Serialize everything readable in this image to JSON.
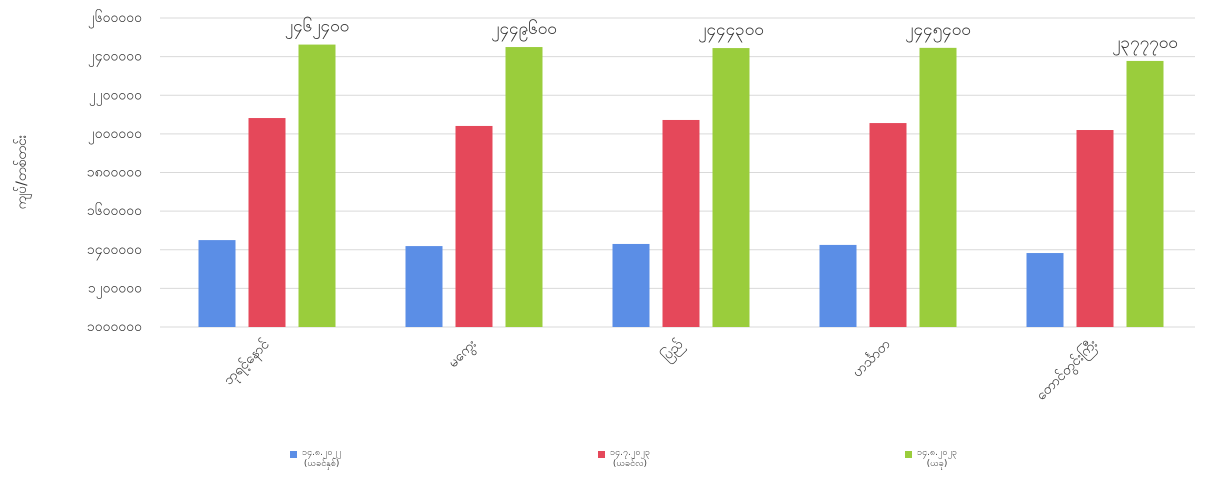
{
  "chart_data": {
    "type": "bar",
    "y_label": "ကျပ်/တစ်တင်း",
    "categories": [
      "ဘုရင့်နောင်",
      "မကွေး",
      "ပြည်",
      "ဟင်္သာတ",
      "တောင်တွင်းကြီး"
    ],
    "series": [
      {
        "name": "၁၄.၈.၂၀၂၂\n(ယခင်နှစ်)",
        "color": "#5b8ee6",
        "values": [
          1450000,
          1419000,
          1430000,
          1425000,
          1383000
        ]
      },
      {
        "name": "၁၄.၇.၂၀၂၃\n(ယခင်လ)",
        "color": "#e5485a",
        "values": [
          2082000,
          2041000,
          2072000,
          2056000,
          2020000
        ]
      },
      {
        "name": "၁၄.၈.၂၀၂၃\n(ယခု)",
        "color": "#9acd3c",
        "values": [
          2462400,
          2449600,
          2444300,
          2445400,
          2377700
        ],
        "value_labels": [
          "၂၄၆၂၄၀၀",
          "၂၄၄၉၆၀၀",
          "၂၄၄၄၃၀၀",
          "၂၄၄၅၄၀၀",
          "၂၃၇၇၇၀၀"
        ]
      }
    ],
    "ylim": [
      1000000,
      2600000
    ],
    "yticks": [
      {
        "value": 1000000,
        "label": "၁၀၀၀၀၀၀"
      },
      {
        "value": 1200000,
        "label": "၁၂၀၀၀၀၀"
      },
      {
        "value": 1400000,
        "label": "၁၄၀၀၀၀၀"
      },
      {
        "value": 1600000,
        "label": "၁၆၀၀၀၀၀"
      },
      {
        "value": 1800000,
        "label": "၁၈၀၀၀၀၀"
      },
      {
        "value": 2000000,
        "label": "၂၀၀၀၀၀၀"
      },
      {
        "value": 2200000,
        "label": "၂၂၀၀၀၀၀"
      },
      {
        "value": 2400000,
        "label": "၂၄၀၀၀၀၀"
      },
      {
        "value": 2600000,
        "label": "၂၆၀၀၀၀၀"
      }
    ],
    "grid": true,
    "legend": "bottom"
  }
}
